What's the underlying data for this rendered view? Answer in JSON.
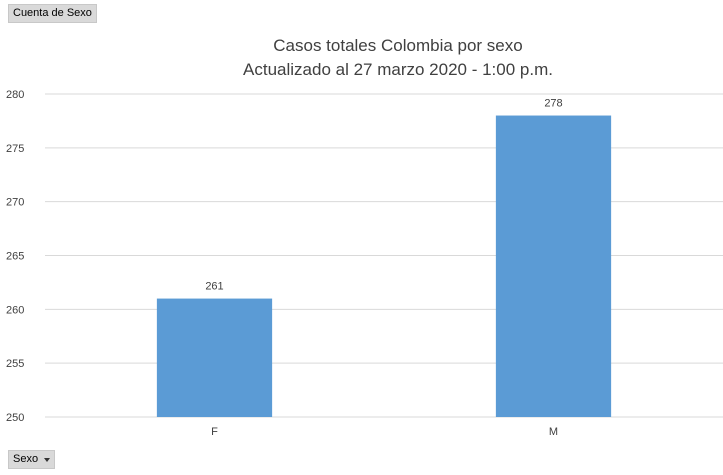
{
  "pivot": {
    "values_field_label": "Cuenta de Sexo",
    "axis_field_label": "Sexo"
  },
  "colors": {
    "bar": "#5b9bd5",
    "gridline": "#d9d9d9",
    "text": "#404040"
  },
  "chart_data": {
    "type": "bar",
    "title": "Casos totales Colombia por sexo",
    "subtitle": "Actualizado al 27 marzo 2020 - 1:00 p.m.",
    "categories": [
      "F",
      "M"
    ],
    "values": [
      261,
      278
    ],
    "data_labels": [
      "261",
      "278"
    ],
    "ylim": [
      250,
      280
    ],
    "yticks": [
      250,
      255,
      260,
      265,
      270,
      275,
      280
    ],
    "grid": true,
    "legend": "none"
  }
}
